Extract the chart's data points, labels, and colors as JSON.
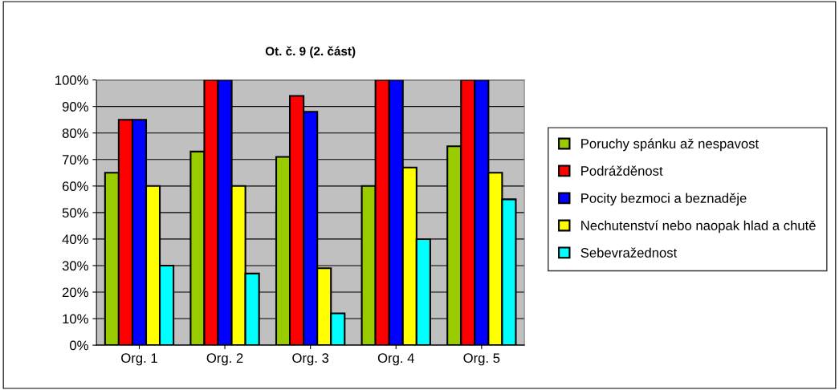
{
  "chart_data": {
    "type": "bar",
    "title": "Ot. č. 9 (2. část)",
    "categories": [
      "Org. 1",
      "Org. 2",
      "Org. 3",
      "Org. 4",
      "Org. 5"
    ],
    "series": [
      {
        "name": "Poruchy spánku až nespavost",
        "color": "#99cc00",
        "values": [
          65,
          73,
          71,
          60,
          75
        ]
      },
      {
        "name": "Podrážděnost",
        "color": "#ff0000",
        "values": [
          85,
          100,
          94,
          100,
          100
        ]
      },
      {
        "name": "Pocity bezmoci a beznaděje",
        "color": "#0000ff",
        "values": [
          85,
          100,
          88,
          100,
          100
        ]
      },
      {
        "name": "Nechutenství nebo naopak hlad a chutě",
        "color": "#ffff00",
        "values": [
          60,
          60,
          29,
          67,
          65
        ]
      },
      {
        "name": "Sebevražednost",
        "color": "#00ffff",
        "values": [
          30,
          27,
          12,
          40,
          55
        ]
      }
    ],
    "ylim": [
      0,
      100
    ],
    "yticks": [
      {
        "value": 0,
        "label": "0%"
      },
      {
        "value": 10,
        "label": "10%"
      },
      {
        "value": 20,
        "label": "20%"
      },
      {
        "value": 30,
        "label": "30%"
      },
      {
        "value": 40,
        "label": "40%"
      },
      {
        "value": 50,
        "label": "50%"
      },
      {
        "value": 60,
        "label": "60%"
      },
      {
        "value": 70,
        "label": "70%"
      },
      {
        "value": 80,
        "label": "80%"
      },
      {
        "value": 90,
        "label": "90%"
      },
      {
        "value": 100,
        "label": "100%"
      }
    ],
    "grid": "y",
    "legend": "right"
  }
}
